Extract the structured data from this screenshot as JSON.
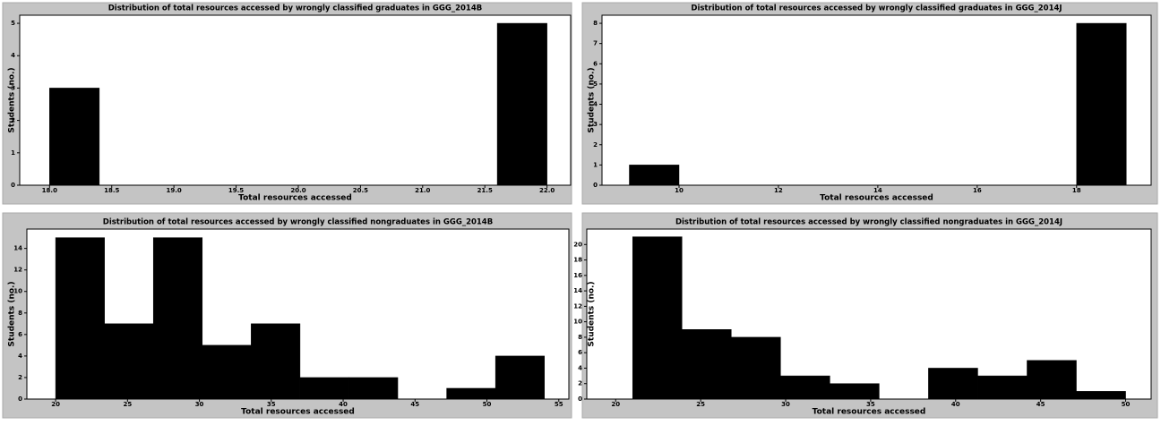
{
  "chart_data": [
    {
      "type": "histogram",
      "title": "Distribution of total resources accessed by wrongly classified graduates in GGG_2014B",
      "xlabel": "Total resources accessed",
      "ylabel": "Students (no.)",
      "color": "#000000",
      "bins": [
        18,
        18.4,
        18.8,
        19.2,
        19.6,
        20,
        20.4,
        20.8,
        21.2,
        21.6,
        22
      ],
      "counts": [
        3,
        0,
        0,
        0,
        0,
        0,
        0,
        0,
        0,
        5
      ],
      "xlim": [
        17.76,
        22.19
      ],
      "ylim": [
        0,
        5.25
      ],
      "xticks": [
        {
          "value": 18,
          "label": "18.0"
        },
        18.5,
        {
          "value": 19,
          "label": "19.0"
        },
        19.5,
        {
          "value": 20,
          "label": "20.0"
        },
        20.5,
        {
          "value": 21,
          "label": "21.0"
        },
        21.5,
        {
          "value": 22,
          "label": "22.0"
        }
      ],
      "yticks": [
        0,
        1,
        2,
        3,
        4,
        5
      ]
    },
    {
      "type": "histogram",
      "title": "Distribution of total resources accessed by wrongly classified graduates in GGG_2014J",
      "xlabel": "Total resources accessed",
      "ylabel": "Students (no.)",
      "color": "#000000",
      "bins": [
        9,
        10,
        11,
        12,
        13,
        14,
        15,
        16,
        17,
        18,
        19
      ],
      "counts": [
        1,
        0,
        0,
        0,
        0,
        0,
        0,
        0,
        0,
        8
      ],
      "xlim": [
        8.45,
        19.5
      ],
      "ylim": [
        0,
        8.4
      ],
      "xticks": [
        10,
        12,
        14,
        16,
        18
      ],
      "yticks": [
        0,
        1,
        2,
        3,
        4,
        5,
        6,
        7,
        8
      ]
    },
    {
      "type": "histogram",
      "title": "Distribution of total resources accessed by wrongly classified nongraduates in GGG_2014B",
      "xlabel": "Total resources accessed",
      "ylabel": "Students (no.)",
      "color": "#000000",
      "bins": [
        20,
        23.4,
        26.8,
        30.2,
        33.6,
        37,
        40.4,
        43.8,
        47.2,
        50.6,
        54
      ],
      "counts": [
        15,
        7,
        15,
        5,
        7,
        2,
        2,
        0,
        1,
        4
      ],
      "xlim": [
        18,
        55.7
      ],
      "ylim": [
        0,
        15.8
      ],
      "xticks": [
        20,
        25,
        30,
        35,
        40,
        45,
        50,
        55
      ],
      "yticks": [
        0,
        2,
        4,
        6,
        8,
        10,
        12,
        14
      ]
    },
    {
      "type": "histogram",
      "title": "Distribution of total resources accessed by wrongly classified nongraduates in GGG_2014J",
      "xlabel": "Total resources accessed",
      "ylabel": "Students (no.)",
      "color": "#000000",
      "bins": [
        21,
        23.9,
        26.8,
        29.7,
        32.6,
        35.5,
        38.4,
        41.3,
        44.2,
        47.1,
        50
      ],
      "counts": [
        21,
        9,
        8,
        3,
        2,
        0,
        4,
        3,
        5,
        1
      ],
      "xlim": [
        18.3,
        51.5
      ],
      "ylim": [
        0,
        22
      ],
      "xticks": [
        20,
        25,
        30,
        35,
        40,
        45,
        50
      ],
      "yticks": [
        0,
        2,
        4,
        6,
        8,
        10,
        12,
        14,
        16,
        18,
        20
      ]
    }
  ]
}
